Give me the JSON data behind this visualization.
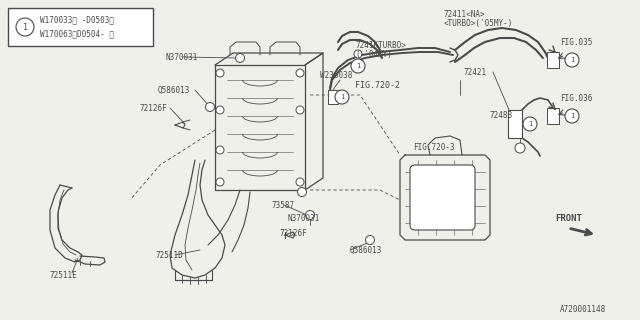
{
  "bg_color": "#f0f0eb",
  "line_color": "#4a4a4a",
  "white": "#ffffff",
  "diagram_id": "A720001148",
  "legend_text1": "W170033〈 -D0503〉",
  "legend_text2": "W170063〈D0504- 〉",
  "front_label": "FRONT"
}
